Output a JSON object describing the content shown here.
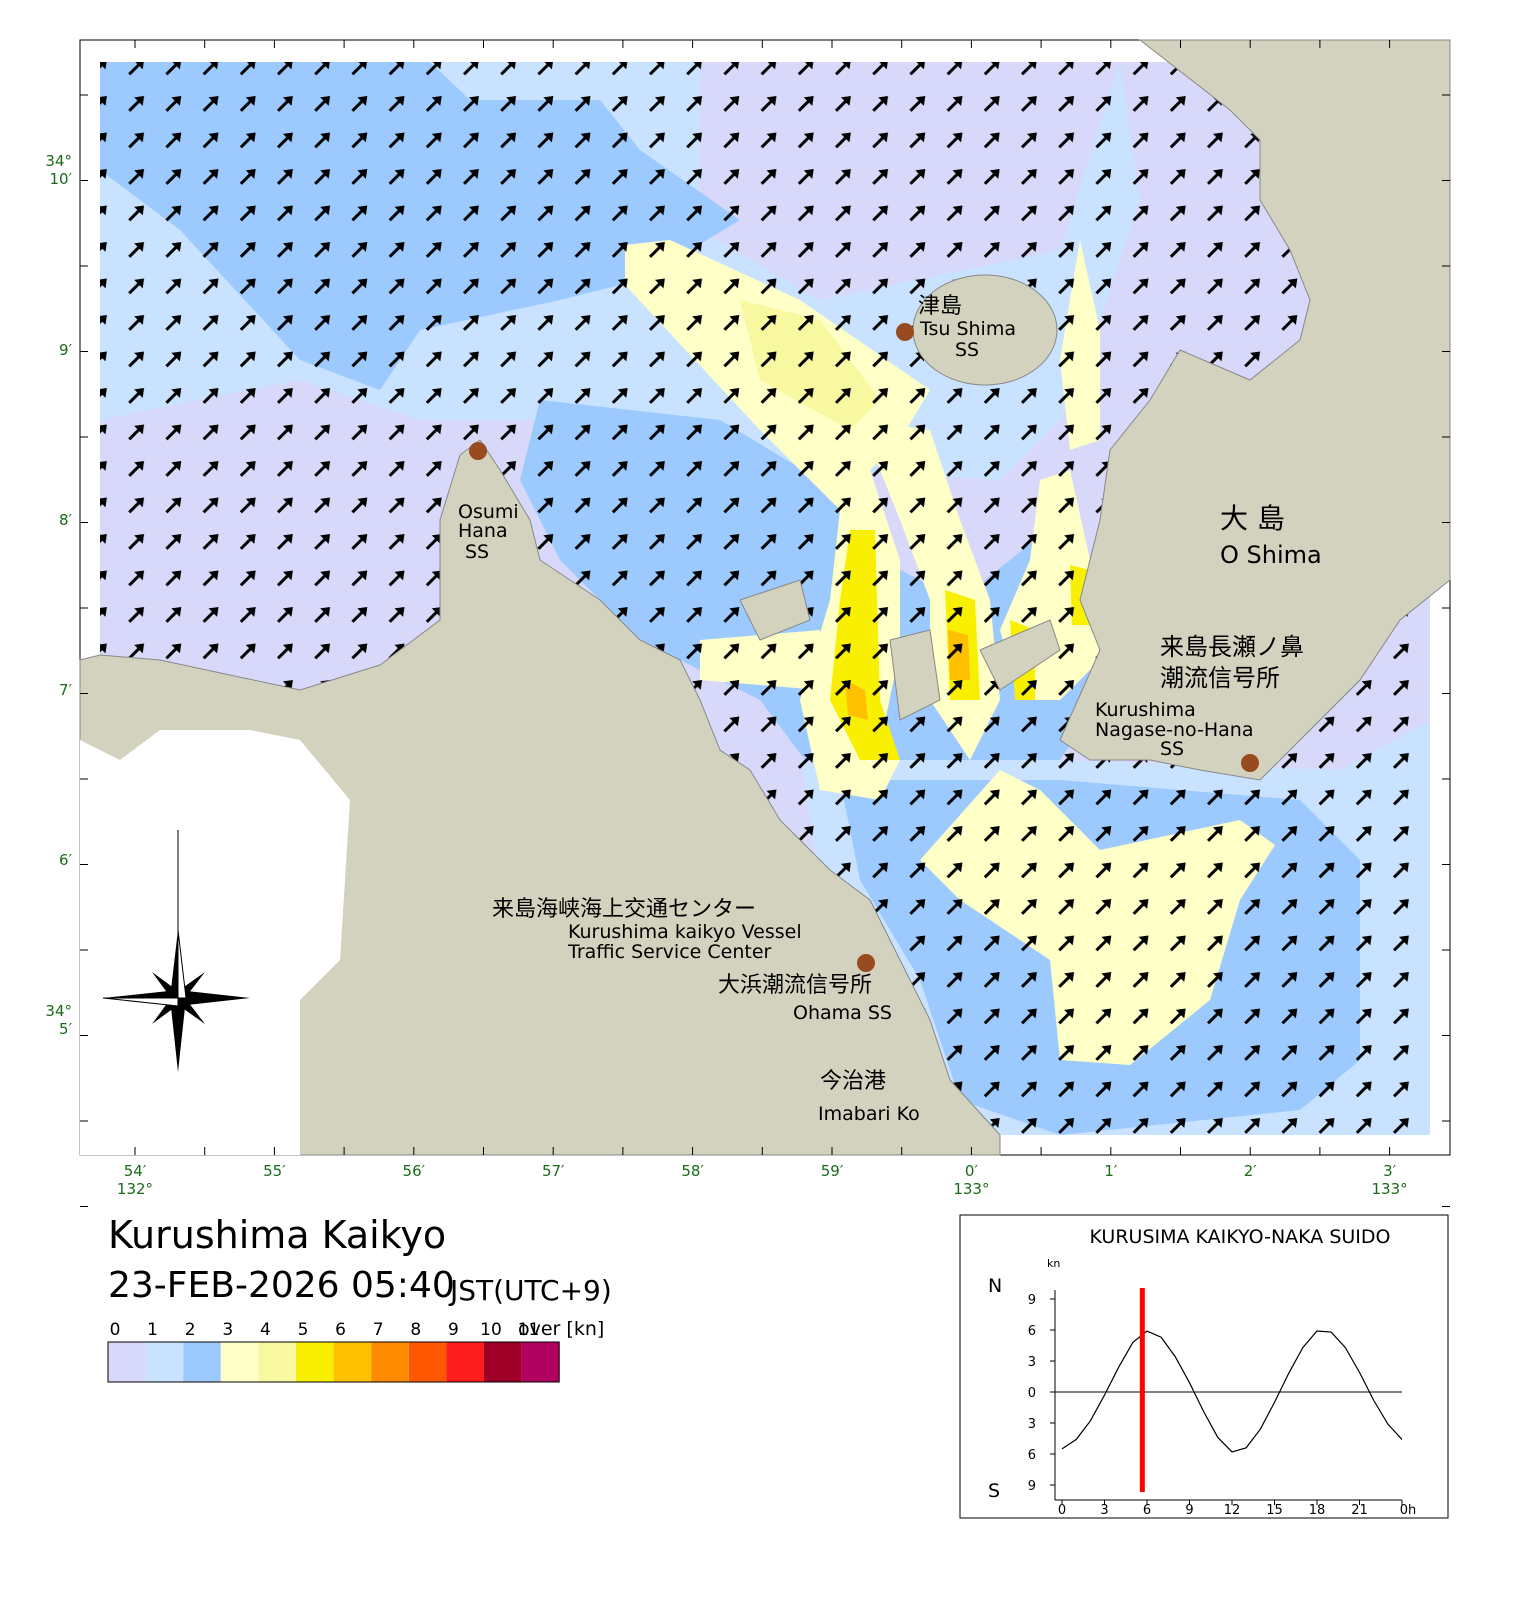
{
  "map": {
    "labels": {
      "tsu_jp": "津島",
      "tsu_en": "Tsu Shima",
      "tsu_ss": "SS",
      "osumi_1": "Osumi",
      "osumi_2": "Hana",
      "osumi_ss": "SS",
      "o_jp": "大 島",
      "o_en": "O Shima",
      "nagase_jp1": "来島長瀬ノ鼻",
      "nagase_jp2": "潮流信号所",
      "nagase_en1": "Kurushima",
      "nagase_en2": "Nagase-no-Hana",
      "nagase_ss": "SS",
      "vts_jp": "来島海峡海上交通センター",
      "vts_en1": "Kurushima kaikyo Vessel",
      "vts_en2": "Traffic Service Center",
      "ohama_jp": "大浜潮流信号所",
      "ohama_en": "Ohama SS",
      "imabari_jp": "今治港",
      "imabari_en": "Imabari Ko"
    },
    "lat_ticks": [
      [
        "34°",
        "10′"
      ],
      [
        "9′"
      ],
      [
        "8′"
      ],
      [
        "7′"
      ],
      [
        "6′"
      ],
      [
        "34°",
        "5′"
      ]
    ],
    "lon_ticks": [
      [
        "54′",
        "132°"
      ],
      [
        "55′"
      ],
      [
        "56′"
      ],
      [
        "57′"
      ],
      [
        "58′"
      ],
      [
        "59′"
      ],
      [
        "0′",
        "133°"
      ],
      [
        "1′"
      ],
      [
        "2′"
      ],
      [
        "3′",
        "133°"
      ]
    ]
  },
  "header": {
    "title": "Kurushima Kaikyo",
    "datetime": "23-FEB-2026 05:40",
    "zone": "JST(UTC+9)"
  },
  "legend": {
    "labels": [
      "0",
      "1",
      "2",
      "3",
      "4",
      "5",
      "6",
      "7",
      "8",
      "9",
      "10",
      "11"
    ],
    "unit": "over [kn]",
    "colors": [
      "#d8d8fa",
      "#c8e2ff",
      "#9ccaff",
      "#ffffc8",
      "#f8f8a0",
      "#f8f000",
      "#ffc000",
      "#ff8c00",
      "#ff5800",
      "#ff1e1e",
      "#a00028",
      "#b00060"
    ]
  },
  "tide_chart": {
    "type": "line",
    "title": "KURUSIMA KAIKYO-NAKA SUIDO",
    "unit": "kn",
    "north": "N",
    "south": "S",
    "xlim": [
      0,
      24
    ],
    "xticks": [
      0,
      3,
      6,
      9,
      12,
      15,
      18,
      21,
      {
        "value": 24,
        "label": "0h"
      }
    ],
    "ylim": [
      -9,
      9
    ],
    "yticks": [
      9,
      6,
      3,
      0,
      {
        "value": -3,
        "label": "3"
      },
      {
        "value": -6,
        "label": "6"
      },
      {
        "value": -9,
        "label": "9"
      }
    ],
    "x": [
      0,
      1,
      2,
      3,
      4,
      5,
      6,
      7,
      8,
      9,
      10,
      11,
      12,
      13,
      14,
      15,
      16,
      17,
      18,
      19,
      20,
      21,
      22,
      23,
      24
    ],
    "values": [
      -5.5,
      -4.6,
      -2.8,
      -0.3,
      2.4,
      4.8,
      5.9,
      5.3,
      3.4,
      0.9,
      -1.9,
      -4.4,
      -5.8,
      -5.4,
      -3.6,
      -1.0,
      1.8,
      4.3,
      5.9,
      5.8,
      4.3,
      1.9,
      -0.8,
      -3.1,
      -4.6
    ],
    "current_time": 5.67,
    "color": "#000000",
    "marker_color": "#ff0000"
  }
}
